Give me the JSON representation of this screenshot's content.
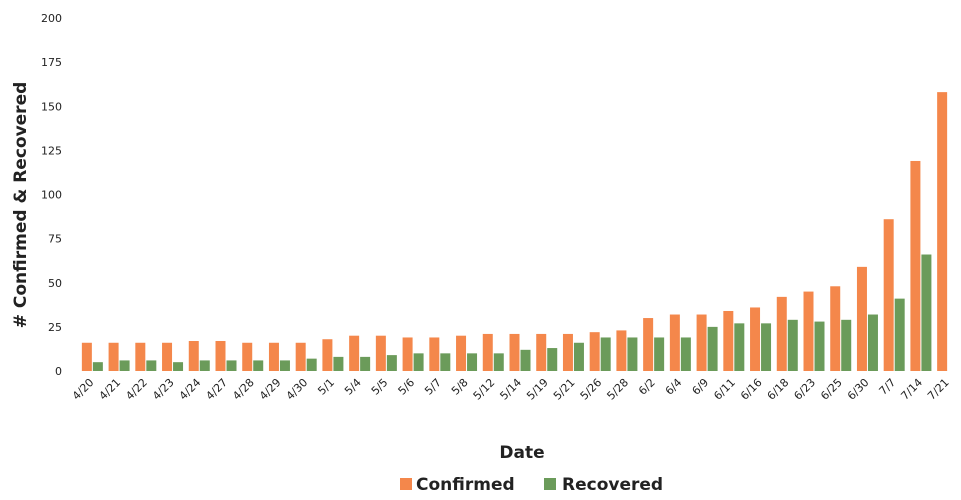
{
  "chart_data": {
    "type": "bar",
    "title": "",
    "xlabel": "Date",
    "ylabel": "# Confirmed & Recovered",
    "ylim": [
      0,
      200
    ],
    "yticks": [
      0,
      25,
      50,
      75,
      100,
      125,
      150,
      175,
      200
    ],
    "grid": false,
    "legend_position": "bottom-center",
    "categories": [
      "4/20",
      "4/21",
      "4/22",
      "4/23",
      "4/24",
      "4/27",
      "4/28",
      "4/29",
      "4/30",
      "5/1",
      "5/4",
      "5/5",
      "5/6",
      "5/7",
      "5/8",
      "5/12",
      "5/14",
      "5/19",
      "5/21",
      "5/26",
      "5/28",
      "6/2",
      "6/4",
      "6/9",
      "6/11",
      "6/16",
      "6/18",
      "6/23",
      "6/25",
      "6/30",
      "7/7",
      "7/14",
      "7/21"
    ],
    "series": [
      {
        "name": "Confirmed",
        "color": "#f4874b",
        "values": [
          16,
          16,
          16,
          16,
          17,
          17,
          16,
          16,
          16,
          18,
          20,
          20,
          19,
          19,
          20,
          21,
          21,
          21,
          21,
          22,
          23,
          30,
          32,
          32,
          34,
          36,
          42,
          45,
          48,
          59,
          86,
          119,
          158
        ]
      },
      {
        "name": "Recovered",
        "color": "#6b9b5a",
        "values": [
          5,
          6,
          6,
          5,
          6,
          6,
          6,
          6,
          7,
          8,
          8,
          9,
          10,
          10,
          10,
          10,
          12,
          13,
          16,
          19,
          19,
          19,
          19,
          25,
          27,
          27,
          29,
          28,
          29,
          32,
          41,
          66,
          0
        ]
      }
    ]
  }
}
